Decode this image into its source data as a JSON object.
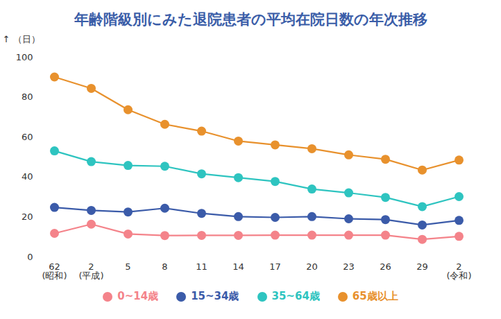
{
  "chart_data": {
    "type": "line",
    "title": "年齢階級別にみた退院患者の平均在院日数の年次推移",
    "y_label": "（日）",
    "categories": [
      "62\n(昭和)",
      "2\n(平成)",
      "5",
      "8",
      "11",
      "14",
      "17",
      "20",
      "23",
      "26",
      "29",
      "2\n(令和)"
    ],
    "series": [
      {
        "name": "0~14歳",
        "color": "#f4838a",
        "values": [
          11.8,
          16.4,
          11.5,
          10.7,
          10.8,
          10.8,
          10.9,
          10.9,
          10.9,
          10.9,
          8.8,
          10.3
        ]
      },
      {
        "name": "15~34歳",
        "color": "#3b5ba9",
        "values": [
          24.8,
          23.3,
          22.5,
          24.4,
          21.8,
          20.2,
          19.8,
          20.2,
          19.1,
          18.7,
          16.0,
          18.3
        ]
      },
      {
        "name": "35~64歳",
        "color": "#2ec4c0",
        "values": [
          53.1,
          47.7,
          45.8,
          45.4,
          41.6,
          39.7,
          37.8,
          34.0,
          32.1,
          29.8,
          25.2,
          30.2
        ]
      },
      {
        "name": "65歳以上",
        "color": "#e8912d",
        "values": [
          90.1,
          84.4,
          73.7,
          66.4,
          63.0,
          58.0,
          56.1,
          54.2,
          51.1,
          48.9,
          43.5,
          48.5
        ]
      }
    ],
    "ylim": [
      0,
      100
    ],
    "yticks": [
      0,
      20,
      40,
      60,
      80,
      100
    ],
    "grid": false,
    "legend": "bottom",
    "marker": "circle"
  }
}
